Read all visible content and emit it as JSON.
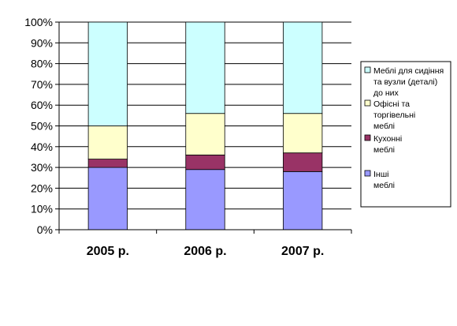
{
  "chart_data": {
    "type": "bar",
    "stacked": true,
    "percent_axis": true,
    "categories": [
      "2005 р.",
      "2006 р.",
      "2007 р."
    ],
    "y_ticks": [
      "0%",
      "10%",
      "20%",
      "30%",
      "40%",
      "50%",
      "60%",
      "70%",
      "80%",
      "90%",
      "100%"
    ],
    "ylim": [
      0,
      100
    ],
    "grid": true,
    "legend_position": "right",
    "series": [
      {
        "name": "Інші меблі",
        "color": "#9999ff",
        "values": [
          30,
          29,
          28
        ]
      },
      {
        "name": "Кухонні меблі",
        "color": "#993366",
        "values": [
          4,
          7,
          9
        ]
      },
      {
        "name": "Офісні та торгівельні меблі",
        "color": "#ffffcc",
        "values": [
          16,
          20,
          19
        ]
      },
      {
        "name": "Меблі для сидіння та вузли (деталі) до них",
        "color": "#ccffff",
        "values": [
          50,
          44,
          44
        ]
      }
    ],
    "legend_lines": [
      [
        "Меблі для сидіння",
        "та вузли (деталі)",
        "до них"
      ],
      [
        "Офісні та",
        "торгівельні",
        "меблі"
      ],
      [
        "Кухонні",
        "меблі"
      ],
      [
        "Інші",
        "меблі"
      ]
    ]
  }
}
